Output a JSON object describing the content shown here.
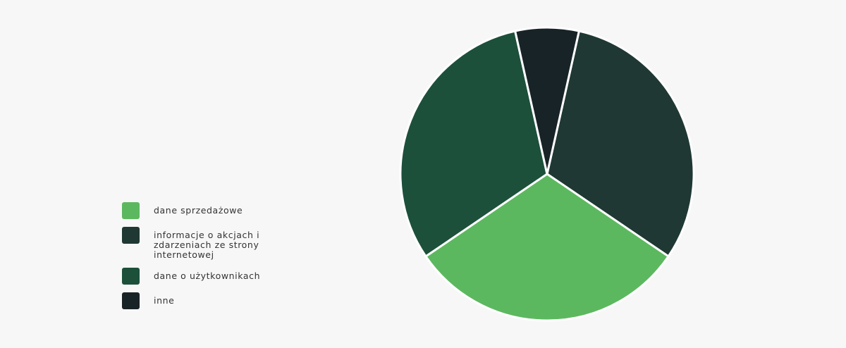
{
  "chart_data": {
    "type": "pie",
    "categories": [
      "dane sprzedażowe",
      "informacje o akcjach i zdarzeniach ze strony internetowej",
      "dane o użytkownikach",
      "inne"
    ],
    "values": [
      31,
      31,
      31,
      7
    ],
    "colors": [
      "#5cb85f",
      "#1f3833",
      "#1c503b",
      "#182328"
    ]
  }
}
